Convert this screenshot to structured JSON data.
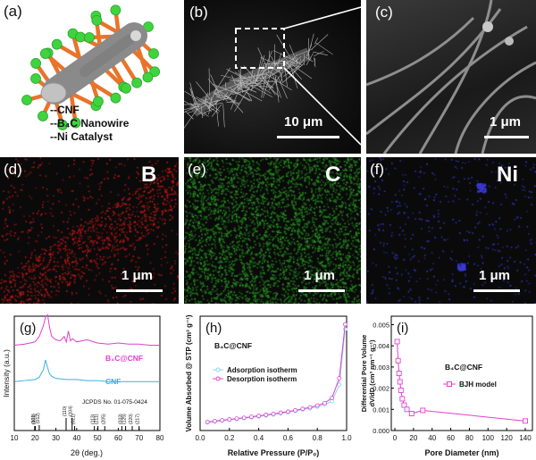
{
  "panel_a": {
    "label": "(a)",
    "legend": [
      "--CNF",
      "--B₄C Nanowire",
      "--Ni Catalyst"
    ]
  },
  "panel_b": {
    "label": "(b)",
    "scale": "10 μm"
  },
  "panel_c": {
    "label": "(c)",
    "scale": "1 μm"
  },
  "panel_d": {
    "label": "(d)",
    "element": "B",
    "scale": "1 μm",
    "color": "#d01818"
  },
  "panel_e": {
    "label": "(e)",
    "element": "C",
    "scale": "1 μm",
    "color": "#28a020"
  },
  "panel_f": {
    "label": "(f)",
    "element": "Ni",
    "scale": "1 μm",
    "color": "#3a3ad8"
  },
  "chart_g": {
    "label": "(g)",
    "xlabel": "2θ (deg.)",
    "ylabel": "Intensity (a.u.)",
    "xticks": [
      "10",
      "20",
      "30",
      "40",
      "50",
      "60",
      "70",
      "80"
    ],
    "series_label_1": "B₄C@CNF",
    "series_label_2": "CNF",
    "ref_label": "JCPDS No. 01-075-0424",
    "peaks": [
      "(101)",
      "(003)",
      "(012)",
      "(110)",
      "(104)",
      "(021)",
      "(113)",
      "(211)",
      "(205)",
      "(033)",
      "(125)",
      "(220)",
      "(217)"
    ]
  },
  "chart_h": {
    "label": "(h)",
    "xlabel": "Relative Pressure (P/P₀)",
    "ylabel": "Volume Absorbed @ STP (cm³ g⁻¹)",
    "sample": "B₄C@CNF",
    "legend": [
      "Adsorption isotherm",
      "Desorption isotherm"
    ],
    "xticks": [
      "0.0",
      "0.2",
      "0.4",
      "0.6",
      "0.8",
      "1.0"
    ]
  },
  "chart_i": {
    "label": "(i)",
    "xlabel": "Pore Diameter (nm)",
    "ylabel_1": "Differential Pore Volume",
    "ylabel_2": "dV/dD (cm³ nm⁻¹ g⁻¹)",
    "sample": "B₄C@CNF",
    "legend": "BJH model",
    "xticks": [
      "0",
      "20",
      "40",
      "60",
      "80",
      "100",
      "120",
      "140"
    ],
    "yticks": [
      "0.000",
      "0.001",
      "0.002",
      "0.003",
      "0.004",
      "0.005"
    ]
  },
  "chart_data": [
    {
      "type": "line",
      "title": "",
      "xlabel": "2θ (deg.)",
      "ylabel": "Intensity (a.u.)",
      "xlim": [
        10,
        80
      ],
      "series": [
        {
          "name": "B₄C@CNF",
          "x": [
            10,
            15,
            20,
            22,
            24,
            25,
            26,
            27,
            28,
            30,
            32,
            34,
            35,
            36,
            37,
            38,
            40,
            45,
            50,
            55,
            60,
            65,
            70,
            75,
            80
          ],
          "y": [
            0.72,
            0.73,
            0.75,
            0.8,
            0.9,
            0.98,
            1.0,
            0.88,
            0.8,
            0.77,
            0.76,
            0.8,
            0.75,
            0.85,
            0.76,
            0.78,
            0.75,
            0.77,
            0.74,
            0.73,
            0.74,
            0.73,
            0.73,
            0.72,
            0.72
          ]
        },
        {
          "name": "CNF",
          "x": [
            10,
            15,
            20,
            22,
            24,
            25,
            26,
            27,
            28,
            30,
            35,
            40,
            45,
            50,
            55,
            60,
            70,
            80
          ],
          "y": [
            0.45,
            0.46,
            0.47,
            0.49,
            0.56,
            0.65,
            0.58,
            0.52,
            0.5,
            0.48,
            0.47,
            0.47,
            0.46,
            0.46,
            0.45,
            0.45,
            0.45,
            0.45
          ]
        }
      ]
    },
    {
      "type": "line",
      "title": "",
      "xlabel": "Relative Pressure (P/P₀)",
      "ylabel": "Volume Absorbed @ STP (cm³ g⁻¹)",
      "xlim": [
        0,
        1
      ],
      "series": [
        {
          "name": "Adsorption isotherm",
          "x": [
            0.05,
            0.1,
            0.15,
            0.2,
            0.25,
            0.3,
            0.35,
            0.4,
            0.45,
            0.5,
            0.55,
            0.6,
            0.65,
            0.7,
            0.75,
            0.8,
            0.85,
            0.9,
            0.95,
            0.99
          ],
          "y": [
            5,
            5.5,
            6,
            6.5,
            7,
            7.5,
            8,
            8.6,
            9.2,
            9.8,
            10.5,
            11.2,
            12,
            12.8,
            13.6,
            14.6,
            15.8,
            18,
            28,
            62
          ]
        },
        {
          "name": "Desorption isotherm",
          "x": [
            0.05,
            0.1,
            0.15,
            0.2,
            0.25,
            0.3,
            0.35,
            0.4,
            0.45,
            0.5,
            0.55,
            0.6,
            0.65,
            0.7,
            0.75,
            0.8,
            0.85,
            0.9,
            0.95,
            0.99
          ],
          "y": [
            5.2,
            5.8,
            6.3,
            6.8,
            7.3,
            7.8,
            8.4,
            9,
            9.6,
            10.2,
            10.9,
            11.6,
            12.4,
            13.3,
            14.2,
            15.3,
            16.8,
            20,
            32,
            65
          ]
        }
      ]
    },
    {
      "type": "line",
      "title": "",
      "xlabel": "Pore Diameter (nm)",
      "ylabel": "Differential Pore Volume dV/dD (cm³ nm⁻¹ g⁻¹)",
      "xlim": [
        0,
        140
      ],
      "ylim": [
        0,
        0.005
      ],
      "series": [
        {
          "name": "BJH model",
          "x": [
            2.5,
            3.5,
            4.5,
            5.5,
            6.5,
            8,
            10,
            13,
            18,
            30,
            140
          ],
          "y": [
            0.0042,
            0.0033,
            0.0027,
            0.0023,
            0.0019,
            0.0015,
            0.0012,
            0.001,
            0.0008,
            0.00095,
            0.00045
          ]
        }
      ]
    }
  ]
}
